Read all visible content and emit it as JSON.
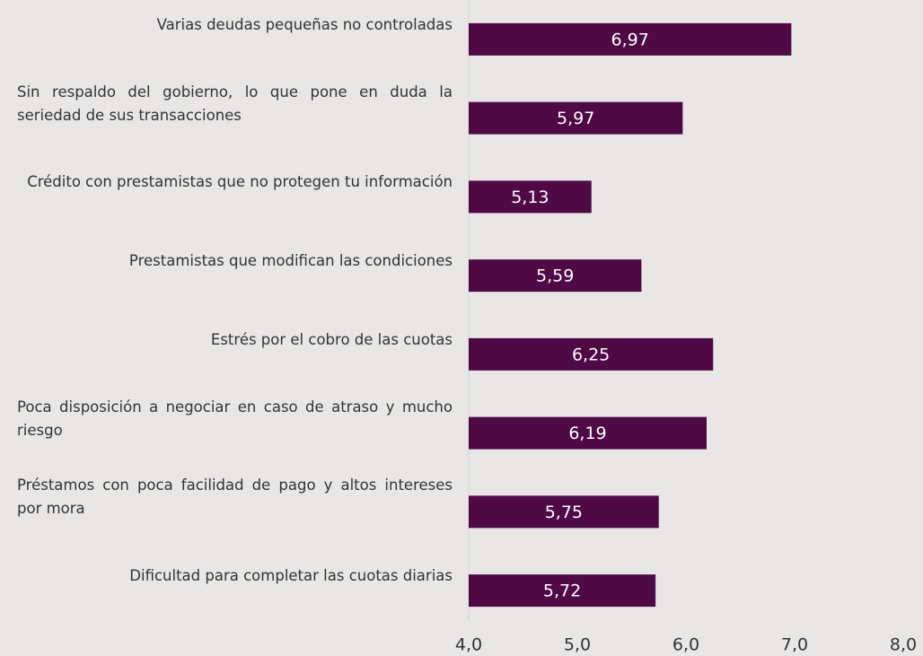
{
  "chart_data": {
    "type": "bar",
    "orientation": "horizontal",
    "categories": [
      "Varias deudas pequeñas no controladas",
      "Sin respaldo del gobierno, lo que pone en duda la seriedad de sus transacciones",
      "Crédito con prestamistas que no protegen tu información",
      "Prestamistas que modifican las condiciones",
      "Estrés por el cobro de las cuotas",
      "Poca disposición a negociar en caso de atraso y mucho riesgo",
      "Préstamos con poca facilidad de pago y  altos intereses por mora",
      "Dificultad para completar las cuotas diarias"
    ],
    "values": [
      6.97,
      5.97,
      5.13,
      5.59,
      6.25,
      6.19,
      5.75,
      5.72
    ],
    "value_labels": [
      "6,97",
      "5,97",
      "5,13",
      "5,59",
      "6,25",
      "6,19",
      "5,75",
      "5,72"
    ],
    "color": "#4f0a46",
    "xlim": [
      4,
      8
    ],
    "xticks": [
      {
        "value": 4,
        "label": "4,0"
      },
      {
        "value": 5,
        "label": "5,0"
      },
      {
        "value": 6,
        "label": "6,0"
      },
      {
        "value": 7,
        "label": "7,0"
      },
      {
        "value": 8,
        "label": "8,0"
      }
    ],
    "grid": false
  }
}
